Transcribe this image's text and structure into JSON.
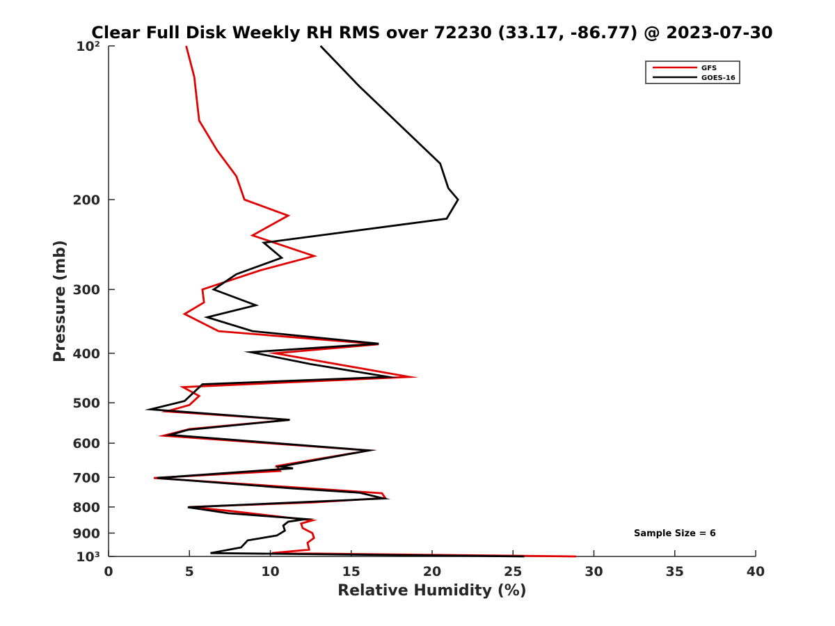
{
  "chart_data": {
    "type": "line",
    "title": "Clear Full Disk Weekly RH RMS over 72230 (33.17, -86.77) @ 2023-07-30",
    "xlabel": "Relative Humidity (%)",
    "ylabel": "Pressure (mb)",
    "xlim": [
      0,
      40
    ],
    "ylim": [
      100,
      1000
    ],
    "yscale": "log",
    "y_reversed": true,
    "grid": false,
    "legend_position": "top-right",
    "x_ticks": [
      0,
      5,
      10,
      15,
      20,
      25,
      30,
      35,
      40
    ],
    "x_tick_labels": [
      "0",
      "5",
      "10",
      "15",
      "20",
      "25",
      "30",
      "35",
      "40"
    ],
    "y_ticks": [
      100,
      200,
      300,
      400,
      500,
      600,
      700,
      800,
      900,
      1000
    ],
    "y_tick_labels": [
      "10²",
      "200",
      "300",
      "400",
      "500",
      "600",
      "700",
      "800",
      "900",
      "10³"
    ],
    "annotation": "Sample Size = 6",
    "series": [
      {
        "name": "GFS",
        "color": "#e00000",
        "points": [
          [
            4.8,
            100
          ],
          [
            5.3,
            115
          ],
          [
            5.6,
            140
          ],
          [
            6.7,
            160
          ],
          [
            7.9,
            180
          ],
          [
            8.4,
            200
          ],
          [
            11.1,
            215
          ],
          [
            8.9,
            235
          ],
          [
            12.7,
            258
          ],
          [
            9.4,
            275
          ],
          [
            6.5,
            295
          ],
          [
            5.8,
            300
          ],
          [
            5.9,
            318
          ],
          [
            4.7,
            335
          ],
          [
            6.8,
            362
          ],
          [
            16.7,
            384
          ],
          [
            10.3,
            400
          ],
          [
            18.6,
            445
          ],
          [
            4.6,
            466
          ],
          [
            5.6,
            485
          ],
          [
            5.0,
            505
          ],
          [
            3.6,
            520
          ],
          [
            11.2,
            540
          ],
          [
            5.0,
            563
          ],
          [
            3.4,
            580
          ],
          [
            16.1,
            620
          ],
          [
            10.4,
            665
          ],
          [
            10.6,
            680
          ],
          [
            2.8,
            702
          ],
          [
            16.9,
            752
          ],
          [
            17.1,
            768
          ],
          [
            12.6,
            784
          ],
          [
            5.0,
            800
          ],
          [
            7.6,
            815
          ],
          [
            12.6,
            850
          ],
          [
            11.9,
            862
          ],
          [
            12.0,
            880
          ],
          [
            12.6,
            900
          ],
          [
            12.7,
            920
          ],
          [
            12.3,
            940
          ],
          [
            12.4,
            970
          ],
          [
            10.1,
            985
          ],
          [
            28.9,
            1000
          ]
        ]
      },
      {
        "name": "GOES-16",
        "color": "#000000",
        "points": [
          [
            13.1,
            100
          ],
          [
            15.5,
            120
          ],
          [
            20.5,
            170
          ],
          [
            21.0,
            190
          ],
          [
            21.6,
            200
          ],
          [
            20.9,
            218
          ],
          [
            9.6,
            243
          ],
          [
            10.7,
            260
          ],
          [
            7.9,
            280
          ],
          [
            6.5,
            300
          ],
          [
            9.1,
            322
          ],
          [
            6.1,
            340
          ],
          [
            8.9,
            362
          ],
          [
            16.7,
            383
          ],
          [
            8.8,
            398
          ],
          [
            12.5,
            420
          ],
          [
            17.3,
            445
          ],
          [
            5.8,
            460
          ],
          [
            4.7,
            496
          ],
          [
            2.6,
            515
          ],
          [
            11.2,
            540
          ],
          [
            4.9,
            565
          ],
          [
            3.8,
            578
          ],
          [
            16.1,
            620
          ],
          [
            10.6,
            667
          ],
          [
            11.4,
            672
          ],
          [
            3.0,
            702
          ],
          [
            11.2,
            735
          ],
          [
            15.5,
            750
          ],
          [
            17.0,
            770
          ],
          [
            4.9,
            801
          ],
          [
            7.4,
            823
          ],
          [
            12.2,
            845
          ],
          [
            11.1,
            855
          ],
          [
            10.8,
            870
          ],
          [
            10.9,
            890
          ],
          [
            10.4,
            910
          ],
          [
            8.6,
            930
          ],
          [
            8.2,
            960
          ],
          [
            6.3,
            985
          ],
          [
            25.7,
            1000
          ]
        ]
      }
    ]
  }
}
